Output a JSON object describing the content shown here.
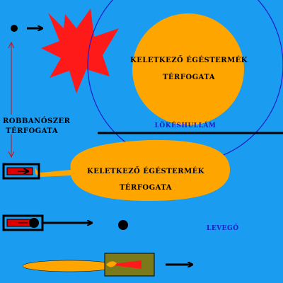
{
  "colors": {
    "background": "#1a9cf0",
    "gas_volume": "#ffa500",
    "explosion": "#ff1a1a",
    "shockwave": "#1c1cc8",
    "charge": "#e00000",
    "tube": "#000000",
    "cannon": "#7a7a1a",
    "caption_blue": "#1c1cc8"
  },
  "labels": {
    "gas_volume_top": {
      "line1": "KELETKEZŐ ÉGÉSTERMÉK",
      "line2": "TÉRFOGATA"
    },
    "gas_volume_middle": {
      "line1": "KELETKEZŐ ÉGÉSTERMÉK",
      "line2": "TÉRFOGATA"
    },
    "explosive_volume": {
      "line1": "ROBBANÓSZER",
      "line2": "TÉRFOGATA"
    },
    "shockwave": "LÖKÉSHULLÁM",
    "air": "LEVEGŐ"
  },
  "icons": [
    "projectile-dot-icon",
    "arrow-right-icon",
    "explosion-burst-icon",
    "double-arrow-vertical-icon"
  ]
}
